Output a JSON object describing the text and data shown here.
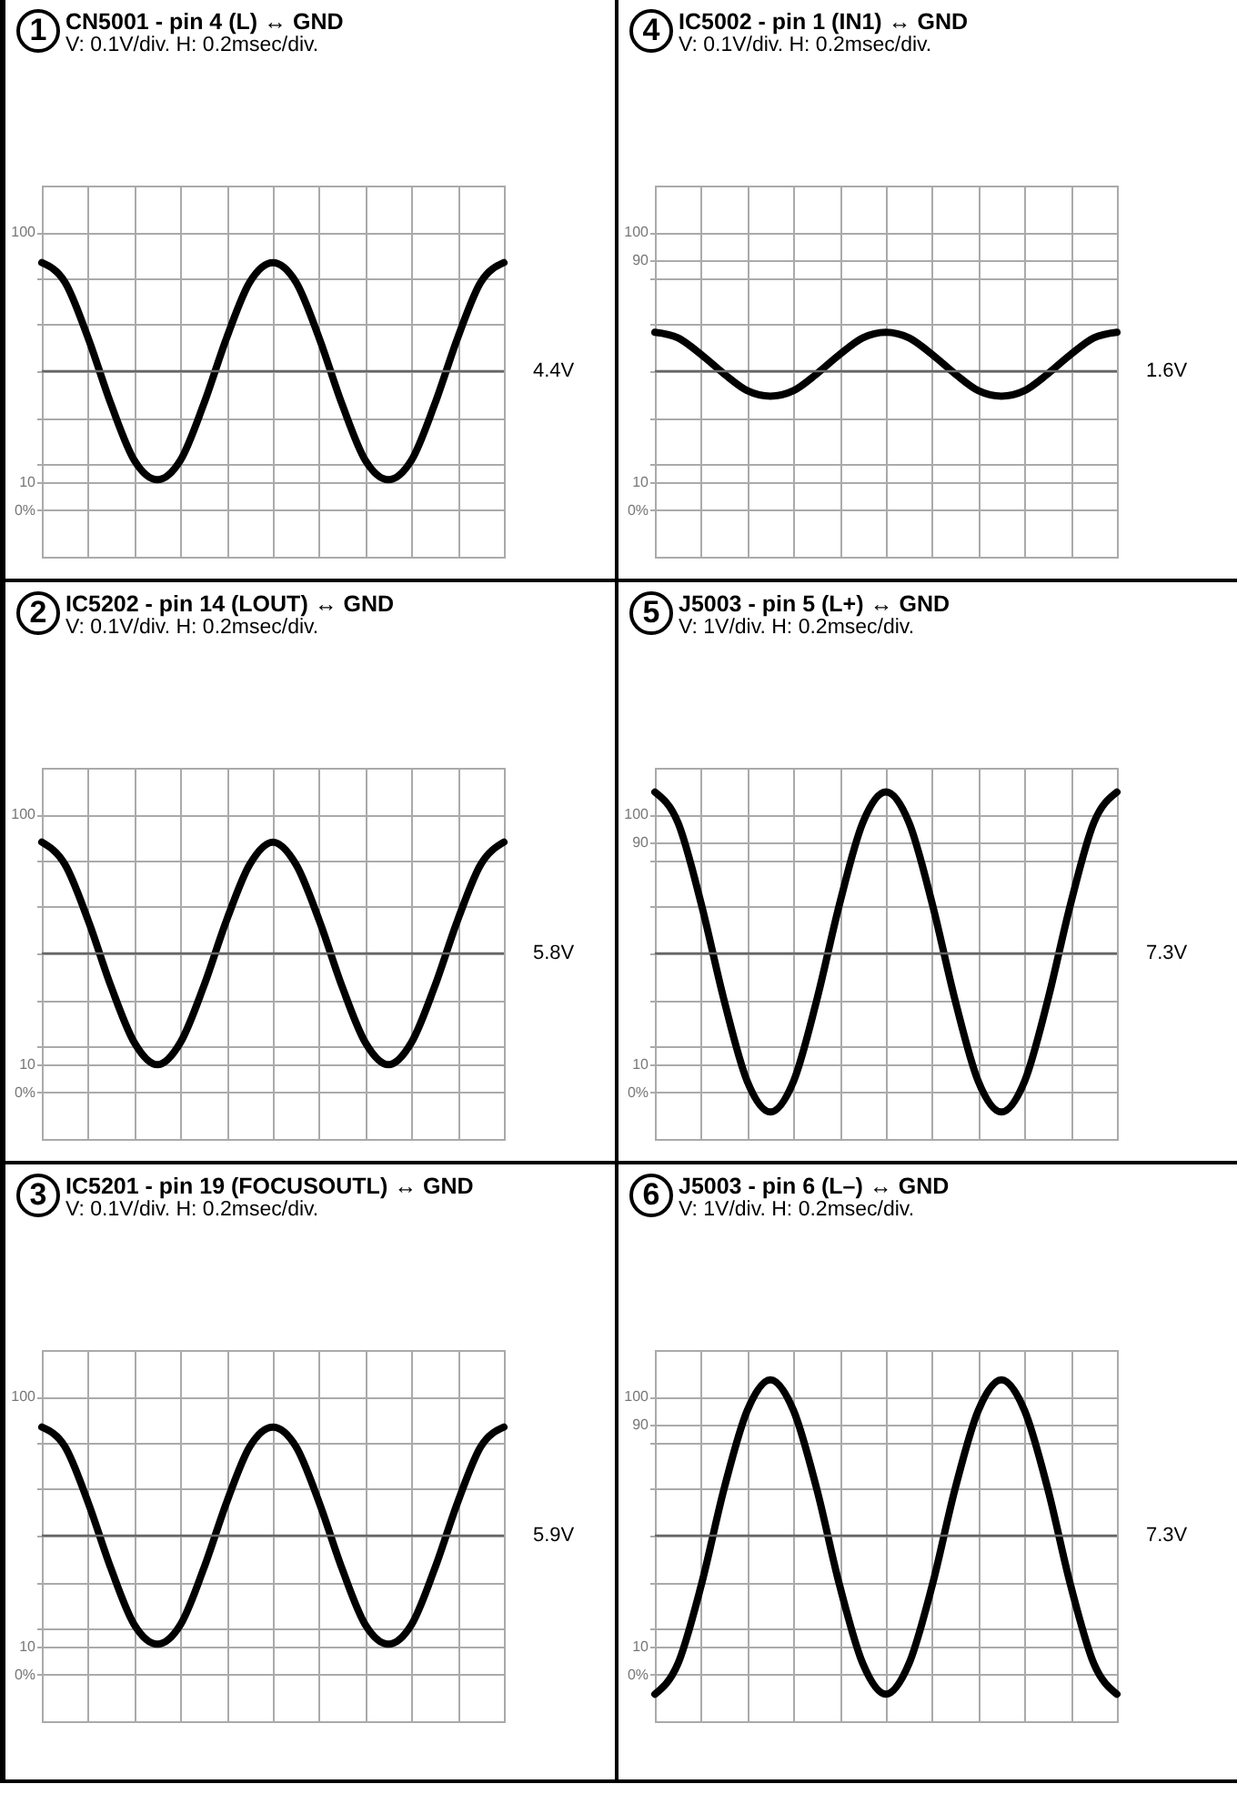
{
  "chart_data": [
    {
      "type": "line",
      "title": "CN5001 - pin 4 (L) ↔ GND",
      "subtitle": "V: 0.1V/div.  H: 0.2msec/div.",
      "annotations": [
        "1"
      ],
      "categories": [
        null,
        null,
        null,
        null,
        null,
        null,
        null,
        null,
        null,
        null,
        null,
        null,
        null,
        null,
        null,
        null,
        null,
        null,
        null,
        null,
        null
      ],
      "values": [
        89,
        82,
        62,
        38,
        18,
        11,
        18,
        38,
        62,
        82,
        89,
        82,
        62,
        38,
        18,
        11,
        18,
        38,
        62,
        82,
        89
      ],
      "color": "#000000",
      "ylim": [
        -16.7,
        116.7
      ],
      "yticks": [
        {
          "value": 0,
          "label": "0%"
        },
        10,
        {
          "value": 16.7,
          "label": null
        },
        {
          "value": 33.3,
          "label": null
        },
        {
          "value": 50,
          "label": null
        },
        {
          "value": 66.7,
          "label": null
        },
        {
          "value": 83.3,
          "label": null
        },
        100
      ],
      "tick_labels": "y",
      "grid": true,
      "ref_lines": [
        {
          "axis": "y",
          "value": 50,
          "label": "4.4V"
        }
      ]
    },
    {
      "type": "line",
      "title": "IC5202 - pin 14 (LOUT) ↔ GND",
      "subtitle": "V: 0.1V/div.  H: 0.2msec/div.",
      "annotations": [
        "2"
      ],
      "categories": [
        null,
        null,
        null,
        null,
        null,
        null,
        null,
        null,
        null,
        null,
        null,
        null,
        null,
        null,
        null,
        null,
        null,
        null,
        null,
        null,
        null
      ],
      "values": [
        90,
        82,
        62,
        38,
        18,
        10,
        18,
        38,
        62,
        82,
        90,
        82,
        62,
        38,
        18,
        10,
        18,
        38,
        62,
        82,
        90
      ],
      "color": "#000000",
      "ylim": [
        -16.7,
        116.7
      ],
      "yticks": [
        {
          "value": 0,
          "label": "0%"
        },
        10,
        {
          "value": 16.7,
          "label": null
        },
        {
          "value": 33.3,
          "label": null
        },
        {
          "value": 50,
          "label": null
        },
        {
          "value": 66.7,
          "label": null
        },
        {
          "value": 83.3,
          "label": null
        },
        100
      ],
      "tick_labels": "y",
      "grid": true,
      "ref_lines": [
        {
          "axis": "y",
          "value": 50,
          "label": "5.8V"
        }
      ]
    },
    {
      "type": "line",
      "title": "IC5201 - pin 19 (FOCUSOUTL) ↔ GND",
      "subtitle": "V: 0.1V/div.  H: 0.2msec/div.",
      "annotations": [
        "3"
      ],
      "categories": [
        null,
        null,
        null,
        null,
        null,
        null,
        null,
        null,
        null,
        null,
        null,
        null,
        null,
        null,
        null,
        null,
        null,
        null,
        null,
        null,
        null
      ],
      "values": [
        89,
        82,
        62,
        38,
        18,
        11,
        18,
        38,
        62,
        82,
        89,
        82,
        62,
        38,
        18,
        11,
        18,
        38,
        62,
        82,
        89
      ],
      "color": "#000000",
      "ylim": [
        -16.7,
        116.7
      ],
      "yticks": [
        {
          "value": 0,
          "label": "0%"
        },
        10,
        {
          "value": 16.7,
          "label": null
        },
        {
          "value": 33.3,
          "label": null
        },
        {
          "value": 50,
          "label": null
        },
        {
          "value": 66.7,
          "label": null
        },
        {
          "value": 83.3,
          "label": null
        },
        100
      ],
      "tick_labels": "y",
      "grid": true,
      "ref_lines": [
        {
          "axis": "y",
          "value": 50,
          "label": "5.9V"
        }
      ]
    },
    {
      "type": "line",
      "title": "IC5002 - pin 1 (IN1) ↔ GND",
      "subtitle": "V: 0.1V/div.  H: 0.2msec/div.",
      "annotations": [
        "4"
      ],
      "categories": [
        null,
        null,
        null,
        null,
        null,
        null,
        null,
        null,
        null,
        null,
        null,
        null,
        null,
        null,
        null,
        null,
        null,
        null,
        null,
        null,
        null
      ],
      "values": [
        64,
        62,
        56,
        49,
        43,
        41,
        43,
        49,
        56,
        62,
        64,
        62,
        56,
        49,
        43,
        41,
        43,
        49,
        56,
        62,
        64
      ],
      "color": "#000000",
      "ylim": [
        -16.7,
        116.7
      ],
      "yticks": [
        {
          "value": 0,
          "label": "0%"
        },
        10,
        {
          "value": 16.7,
          "label": null
        },
        {
          "value": 33.3,
          "label": null
        },
        {
          "value": 50,
          "label": null
        },
        {
          "value": 66.7,
          "label": null
        },
        {
          "value": 83.3,
          "label": null
        },
        90,
        100
      ],
      "tick_labels": "y",
      "grid": true,
      "ref_lines": [
        {
          "axis": "y",
          "value": 50,
          "label": "1.6V"
        }
      ]
    },
    {
      "type": "line",
      "title": "J5003 - pin 5 (L+) ↔ GND",
      "subtitle": "V: 1V/div.  H: 0.2msec/div.",
      "annotations": [
        "5"
      ],
      "categories": [
        null,
        null,
        null,
        null,
        null,
        null,
        null,
        null,
        null,
        null,
        null,
        null,
        null,
        null,
        null,
        null,
        null,
        null,
        null,
        null,
        null
      ],
      "values": [
        108,
        97,
        68,
        33,
        4,
        -7,
        4,
        33,
        68,
        97,
        108,
        97,
        68,
        33,
        4,
        -7,
        4,
        33,
        68,
        97,
        108
      ],
      "color": "#000000",
      "ylim": [
        -16.7,
        116.7
      ],
      "yticks": [
        {
          "value": 0,
          "label": "0%"
        },
        10,
        {
          "value": 16.7,
          "label": null
        },
        {
          "value": 33.3,
          "label": null
        },
        {
          "value": 50,
          "label": null
        },
        {
          "value": 66.7,
          "label": null
        },
        {
          "value": 83.3,
          "label": null
        },
        90,
        100
      ],
      "tick_labels": "y",
      "grid": true,
      "ref_lines": [
        {
          "axis": "y",
          "value": 50,
          "label": "7.3V"
        }
      ]
    },
    {
      "type": "line",
      "title": "J5003 - pin 6 (L–) ↔ GND",
      "subtitle": "V: 1V/div.  H: 0.2msec/div.",
      "annotations": [
        "6"
      ],
      "categories": [
        null,
        null,
        null,
        null,
        null,
        null,
        null,
        null,
        null,
        null,
        null,
        null,
        null,
        null,
        null,
        null,
        null,
        null,
        null,
        null,
        null
      ],
      "values": [
        -7,
        4,
        32,
        67,
        95,
        106,
        95,
        67,
        32,
        4,
        -7,
        4,
        32,
        67,
        95,
        106,
        95,
        67,
        32,
        4,
        -7
      ],
      "color": "#000000",
      "ylim": [
        -16.7,
        116.7
      ],
      "yticks": [
        {
          "value": 0,
          "label": "0%"
        },
        10,
        {
          "value": 16.7,
          "label": null
        },
        {
          "value": 33.3,
          "label": null
        },
        {
          "value": 50,
          "label": null
        },
        {
          "value": 66.7,
          "label": null
        },
        {
          "value": 83.3,
          "label": null
        },
        90,
        100
      ],
      "tick_labels": "y",
      "grid": true,
      "ref_lines": [
        {
          "axis": "y",
          "value": 50,
          "label": "7.3V"
        }
      ]
    }
  ]
}
